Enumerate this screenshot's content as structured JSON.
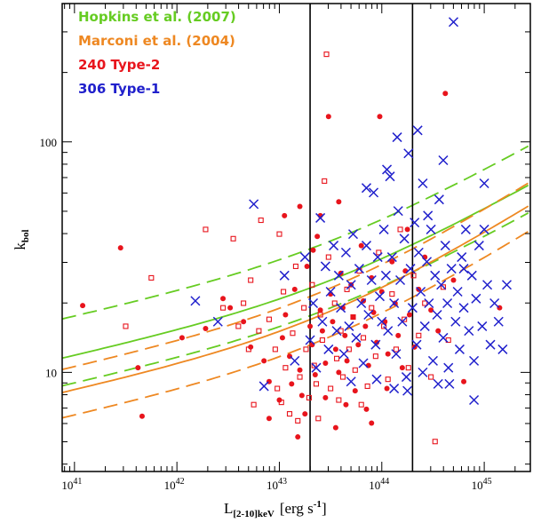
{
  "chart_data": {
    "type": "scatter",
    "title": "",
    "xlabel": {
      "main": "L",
      "sub": "[2-10]keV",
      "units": "[erg s",
      "exp": "-1",
      "close": "]"
    },
    "ylabel": {
      "main": "k",
      "sub": "bol"
    },
    "x_log": true,
    "y_log": true,
    "xlim_log10": [
      40.88,
      45.45
    ],
    "ylim_log10": [
      0.57,
      2.6
    ],
    "x_ticks": [
      {
        "base": "10",
        "exp": "41",
        "log": 41
      },
      {
        "base": "10",
        "exp": "42",
        "log": 42
      },
      {
        "base": "10",
        "exp": "43",
        "log": 43
      },
      {
        "base": "10",
        "exp": "44",
        "log": 44
      },
      {
        "base": "10",
        "exp": "45",
        "log": 45
      }
    ],
    "y_ticks": [
      {
        "label": "10",
        "log": 1
      },
      {
        "label": "100",
        "log": 2
      }
    ],
    "vertical_lines_log10": [
      43.3,
      44.3
    ],
    "legend": [
      {
        "label": "Hopkins et al. (2007)",
        "color": "#66cc22"
      },
      {
        "label": "Marconi et al. (2004)",
        "color": "#ee8822"
      },
      {
        "label": "240 Type-2",
        "color": "#e8141c"
      },
      {
        "label": "306 Type-1",
        "color": "#2020cc"
      }
    ],
    "curves": [
      {
        "name": "Hopkins et al. (2007)",
        "role": "median",
        "style": "solid",
        "color": "#66cc22",
        "logk_at_logL40": 0.97,
        "slope_a": 0.1,
        "slope_b": 0.25,
        "knee_logL": 43.5
      },
      {
        "name": "Hopkins et al. (2007)",
        "role": "upper",
        "style": "dashed",
        "color": "#66cc22",
        "logk_at_logL40": 1.14,
        "slope_a": 0.1,
        "slope_b": 0.25,
        "knee_logL": 43.5
      },
      {
        "name": "Hopkins et al. (2007)",
        "role": "lower",
        "style": "dashed",
        "color": "#66cc22",
        "logk_at_logL40": 0.85,
        "slope_a": 0.1,
        "slope_b": 0.25,
        "knee_logL": 43.5
      },
      {
        "name": "Marconi et al. (2004)",
        "role": "median",
        "style": "solid",
        "color": "#ee8822",
        "logk_at_logL40": 0.82,
        "slope_a": 0.1,
        "slope_b": 0.28,
        "knee_logL": 43.5
      },
      {
        "name": "Marconi et al. (2004)",
        "role": "upper",
        "style": "dashed",
        "color": "#ee8822",
        "logk_at_logL40": 0.92,
        "slope_a": 0.1,
        "slope_b": 0.28,
        "knee_logL": 43.5
      },
      {
        "name": "Marconi et al. (2004)",
        "role": "lower",
        "style": "dashed",
        "color": "#ee8822",
        "logk_at_logL40": 0.71,
        "slope_a": 0.1,
        "slope_b": 0.28,
        "knee_logL": 43.5
      }
    ],
    "series": [
      {
        "name": "240 Type-2 (filled)",
        "marker": "filled-circle",
        "color": "#e8141c",
        "points": [
          [
            41.08,
            1.29
          ],
          [
            41.45,
            1.54
          ],
          [
            41.62,
            1.02
          ],
          [
            41.66,
            0.81
          ],
          [
            42.05,
            1.15
          ],
          [
            42.28,
            1.19
          ],
          [
            42.45,
            1.32
          ],
          [
            42.52,
            1.28
          ],
          [
            42.65,
            1.22
          ],
          [
            42.72,
            1.11
          ],
          [
            42.85,
            1.05
          ],
          [
            42.9,
            0.96
          ],
          [
            43.0,
            0.88
          ],
          [
            43.03,
            1.15
          ],
          [
            43.06,
            1.25
          ],
          [
            43.1,
            1.07
          ],
          [
            43.12,
            0.95
          ],
          [
            43.15,
            1.36
          ],
          [
            43.2,
            1.01
          ],
          [
            43.22,
            0.9
          ],
          [
            43.27,
            1.46
          ],
          [
            43.3,
            1.2
          ],
          [
            43.32,
            1.12
          ],
          [
            43.35,
            0.99
          ],
          [
            43.37,
            1.59
          ],
          [
            43.4,
            1.27
          ],
          [
            43.42,
            1.18
          ],
          [
            43.45,
            1.04
          ],
          [
            43.48,
            2.11
          ],
          [
            43.5,
            1.34
          ],
          [
            43.52,
            1.22
          ],
          [
            43.55,
            1.1
          ],
          [
            43.58,
            1.0
          ],
          [
            43.6,
            1.43
          ],
          [
            43.62,
            1.28
          ],
          [
            43.64,
            1.16
          ],
          [
            43.66,
            1.05
          ],
          [
            43.7,
            1.38
          ],
          [
            43.72,
            1.24
          ],
          [
            43.74,
            0.92
          ],
          [
            43.77,
            1.12
          ],
          [
            43.8,
            1.55
          ],
          [
            43.82,
            1.31
          ],
          [
            43.84,
            1.2
          ],
          [
            43.87,
            1.03
          ],
          [
            43.9,
            1.41
          ],
          [
            43.92,
            1.26
          ],
          [
            43.95,
            1.13
          ],
          [
            43.98,
            2.11
          ],
          [
            44.0,
            1.35
          ],
          [
            44.03,
            1.22
          ],
          [
            44.06,
            1.08
          ],
          [
            44.1,
            1.48
          ],
          [
            44.13,
            1.3
          ],
          [
            44.16,
            1.16
          ],
          [
            44.2,
            1.02
          ],
          [
            44.23,
            1.44
          ],
          [
            44.27,
            1.25
          ],
          [
            44.32,
            1.11
          ],
          [
            44.36,
            1.36
          ],
          [
            44.42,
            1.5
          ],
          [
            44.48,
            1.27
          ],
          [
            44.55,
            1.18
          ],
          [
            44.62,
            2.21
          ],
          [
            44.7,
            1.4
          ],
          [
            44.8,
            0.96
          ],
          [
            45.15,
            1.28
          ],
          [
            43.25,
            0.82
          ],
          [
            43.45,
            0.89
          ],
          [
            43.65,
            0.86
          ],
          [
            43.85,
            0.84
          ],
          [
            44.05,
            0.93
          ],
          [
            43.18,
            0.72
          ],
          [
            43.55,
            0.76
          ],
          [
            43.9,
            0.78
          ],
          [
            42.9,
            0.8
          ],
          [
            43.05,
            1.68
          ],
          [
            43.2,
            1.72
          ],
          [
            43.4,
            1.68
          ],
          [
            44.25,
            1.62
          ],
          [
            43.33,
            1.53
          ],
          [
            43.58,
            1.74
          ]
        ]
      },
      {
        "name": "240 Type-2 (open)",
        "marker": "open-square",
        "color": "#e8141c",
        "points": [
          [
            41.5,
            1.2
          ],
          [
            41.75,
            1.41
          ],
          [
            42.28,
            1.62
          ],
          [
            42.55,
            1.58
          ],
          [
            42.6,
            1.2
          ],
          [
            42.7,
            1.1
          ],
          [
            42.72,
            1.4
          ],
          [
            42.82,
            1.66
          ],
          [
            42.9,
            1.23
          ],
          [
            42.96,
            1.1
          ],
          [
            42.98,
            0.93
          ],
          [
            43.04,
            1.35
          ],
          [
            43.06,
            1.02
          ],
          [
            43.1,
            0.82
          ],
          [
            43.13,
            1.17
          ],
          [
            43.16,
            1.46
          ],
          [
            43.2,
            0.98
          ],
          [
            43.24,
            1.28
          ],
          [
            43.26,
            1.1
          ],
          [
            43.29,
            0.89
          ],
          [
            43.32,
            1.38
          ],
          [
            43.34,
            1.03
          ],
          [
            43.36,
            0.95
          ],
          [
            43.4,
            1.25
          ],
          [
            43.42,
            1.14
          ],
          [
            43.46,
            2.38
          ],
          [
            43.48,
            1.5
          ],
          [
            43.5,
            0.93
          ],
          [
            43.54,
            1.3
          ],
          [
            43.56,
            1.06
          ],
          [
            43.6,
            1.18
          ],
          [
            43.62,
            0.98
          ],
          [
            43.66,
            1.36
          ],
          [
            43.68,
            1.1
          ],
          [
            43.72,
            1.24
          ],
          [
            43.74,
            1.01
          ],
          [
            43.78,
            1.44
          ],
          [
            43.82,
            1.15
          ],
          [
            43.86,
            0.94
          ],
          [
            43.9,
            1.28
          ],
          [
            43.94,
            1.07
          ],
          [
            43.97,
            1.52
          ],
          [
            44.02,
            1.2
          ],
          [
            44.06,
            0.97
          ],
          [
            44.1,
            1.34
          ],
          [
            44.14,
            1.1
          ],
          [
            44.18,
            1.62
          ],
          [
            44.22,
            1.23
          ],
          [
            44.26,
            1.02
          ],
          [
            44.31,
            1.42
          ],
          [
            44.36,
            1.16
          ],
          [
            44.42,
            1.3
          ],
          [
            44.48,
            0.98
          ],
          [
            44.52,
            0.7
          ],
          [
            44.6,
            1.37
          ],
          [
            44.65,
            1.14
          ],
          [
            43.18,
            0.79
          ],
          [
            43.38,
            0.8
          ],
          [
            43.58,
            0.88
          ],
          [
            43.8,
            0.86
          ],
          [
            43.02,
            0.87
          ],
          [
            42.75,
            0.86
          ],
          [
            42.45,
            1.28
          ],
          [
            42.65,
            1.3
          ],
          [
            42.8,
            1.18
          ],
          [
            43.0,
            1.6
          ],
          [
            43.44,
            1.83
          ]
        ]
      },
      {
        "name": "306 Type-1",
        "marker": "cross",
        "color": "#2020cc",
        "points": [
          [
            42.18,
            1.31
          ],
          [
            42.4,
            1.22
          ],
          [
            42.75,
            1.73
          ],
          [
            42.85,
            0.94
          ],
          [
            43.05,
            1.42
          ],
          [
            43.15,
            1.05
          ],
          [
            43.25,
            1.5
          ],
          [
            43.3,
            1.14
          ],
          [
            43.33,
            1.3
          ],
          [
            43.36,
            1.02
          ],
          [
            43.4,
            1.67
          ],
          [
            43.42,
            1.22
          ],
          [
            43.45,
            1.46
          ],
          [
            43.48,
            1.1
          ],
          [
            43.5,
            1.35
          ],
          [
            43.53,
            1.55
          ],
          [
            43.56,
            1.18
          ],
          [
            43.58,
            1.42
          ],
          [
            43.6,
            1.28
          ],
          [
            43.63,
            1.08
          ],
          [
            43.65,
            1.52
          ],
          [
            43.68,
            1.2
          ],
          [
            43.7,
            1.38
          ],
          [
            43.72,
            1.6
          ],
          [
            43.75,
            1.15
          ],
          [
            43.78,
            1.45
          ],
          [
            43.8,
            1.3
          ],
          [
            43.82,
            1.04
          ],
          [
            43.85,
            1.55
          ],
          [
            43.87,
            1.25
          ],
          [
            43.9,
            1.4
          ],
          [
            43.92,
            1.78
          ],
          [
            43.94,
            1.12
          ],
          [
            43.96,
            1.5
          ],
          [
            43.98,
            1.33
          ],
          [
            44.0,
            1.22
          ],
          [
            44.02,
            1.62
          ],
          [
            44.04,
            1.42
          ],
          [
            44.06,
            1.18
          ],
          [
            44.08,
            1.85
          ],
          [
            44.1,
            1.5
          ],
          [
            44.12,
            1.3
          ],
          [
            44.14,
            1.08
          ],
          [
            44.16,
            1.7
          ],
          [
            44.18,
            1.4
          ],
          [
            44.2,
            1.22
          ],
          [
            44.22,
            1.58
          ],
          [
            44.24,
            0.98
          ],
          [
            44.26,
            1.95
          ],
          [
            44.28,
            1.45
          ],
          [
            44.3,
            1.28
          ],
          [
            44.32,
            1.65
          ],
          [
            44.34,
            1.12
          ],
          [
            44.36,
            1.52
          ],
          [
            44.38,
            1.35
          ],
          [
            44.4,
            1.82
          ],
          [
            44.42,
            1.2
          ],
          [
            44.44,
            1.48
          ],
          [
            44.46,
            1.3
          ],
          [
            44.48,
            1.62
          ],
          [
            44.5,
            1.05
          ],
          [
            44.52,
            1.42
          ],
          [
            44.54,
            1.25
          ],
          [
            44.56,
            1.75
          ],
          [
            44.58,
            1.38
          ],
          [
            44.6,
            1.15
          ],
          [
            44.62,
            1.55
          ],
          [
            44.64,
            1.3
          ],
          [
            44.66,
            0.95
          ],
          [
            44.68,
            1.45
          ],
          [
            44.7,
            2.52
          ],
          [
            44.72,
            1.22
          ],
          [
            44.74,
            1.35
          ],
          [
            44.76,
            1.1
          ],
          [
            44.78,
            1.5
          ],
          [
            44.8,
            1.28
          ],
          [
            44.82,
            1.62
          ],
          [
            44.85,
            1.18
          ],
          [
            44.88,
            1.42
          ],
          [
            44.9,
            1.05
          ],
          [
            44.92,
            1.32
          ],
          [
            44.95,
            1.55
          ],
          [
            44.98,
            1.2
          ],
          [
            45.0,
            1.62
          ],
          [
            45.03,
            1.38
          ],
          [
            45.06,
            1.12
          ],
          [
            45.1,
            1.3
          ],
          [
            45.14,
            1.22
          ],
          [
            45.18,
            1.1
          ],
          [
            45.22,
            1.38
          ],
          [
            44.15,
            2.02
          ],
          [
            44.35,
            2.05
          ],
          [
            44.6,
            1.92
          ],
          [
            43.85,
            1.8
          ],
          [
            44.05,
            1.88
          ],
          [
            44.9,
            0.88
          ],
          [
            44.55,
            0.95
          ],
          [
            44.25,
            0.92
          ],
          [
            44.8,
            1.45
          ],
          [
            45.0,
            1.82
          ],
          [
            44.45,
            1.68
          ],
          [
            43.95,
            0.97
          ],
          [
            44.12,
            0.93
          ],
          [
            43.7,
            0.96
          ],
          [
            44.4,
            1.0
          ],
          [
            44.65,
            1.02
          ]
        ]
      }
    ]
  }
}
